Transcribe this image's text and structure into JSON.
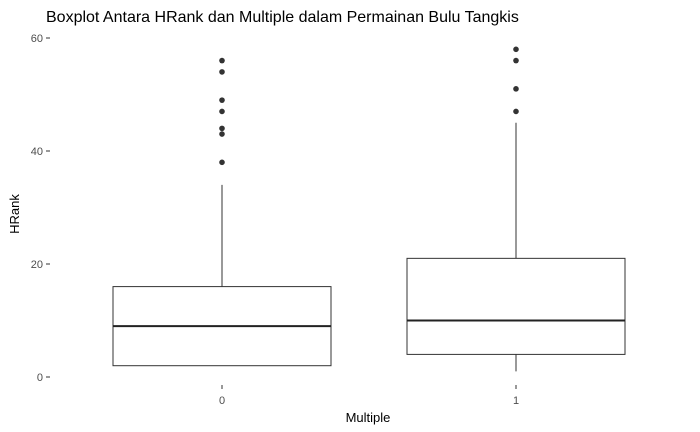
{
  "chart_data": {
    "type": "boxplot",
    "title": "Boxplot Antara HRank dan Multiple dalam Permainan Bulu Tangkis",
    "xlabel": "Multiple",
    "ylabel": "HRank",
    "categories": [
      "0",
      "1"
    ],
    "ylim": [
      0,
      61
    ],
    "yticks": [
      0,
      20,
      40,
      60
    ],
    "grid": false,
    "boxes": [
      {
        "category": "0",
        "whisker_low": 2,
        "q1": 2,
        "median": 9,
        "q3": 16,
        "whisker_high": 34,
        "outliers": [
          38,
          43,
          44,
          47,
          49,
          54,
          56
        ]
      },
      {
        "category": "1",
        "whisker_low": 1,
        "q1": 4,
        "median": 10,
        "q3": 21,
        "whisker_high": 45,
        "outliers": [
          47,
          51,
          56,
          58
        ]
      }
    ]
  }
}
